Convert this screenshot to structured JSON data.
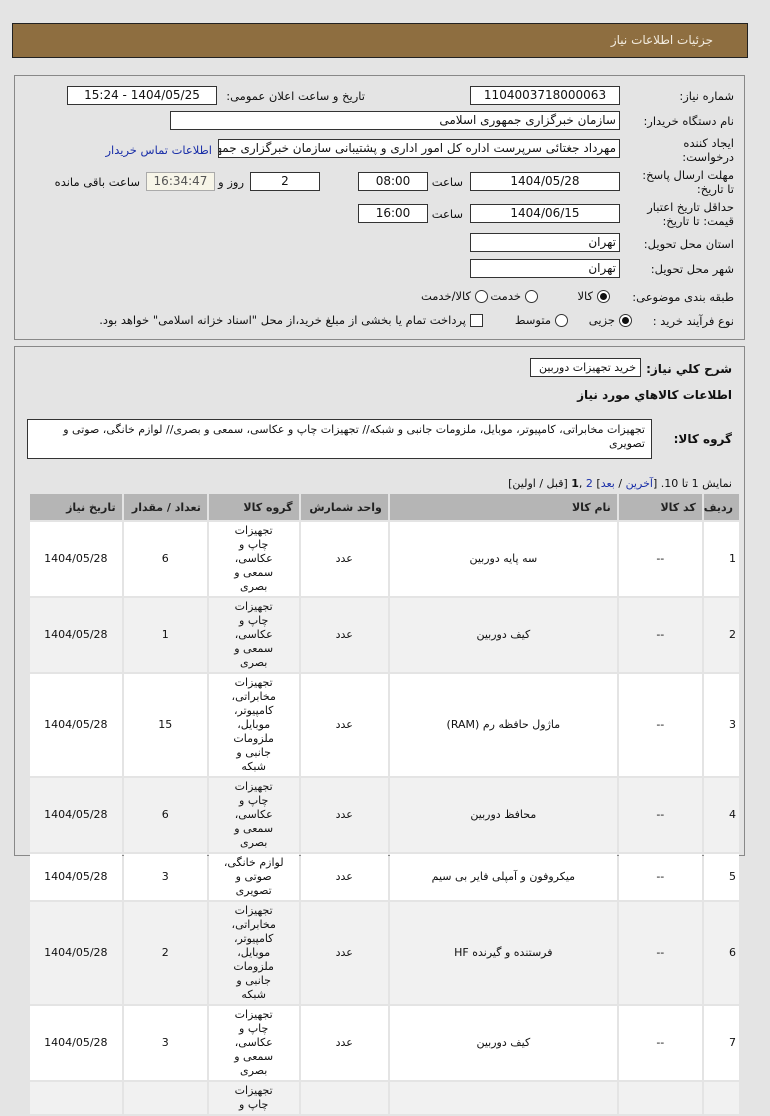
{
  "header": {
    "title": "جزئیات اطلاعات نیاز"
  },
  "form": {
    "need_number_label": "شماره نیاز:",
    "need_number": "1104003718000063",
    "announce_label": "تاریخ و ساعت اعلان عمومی:",
    "announce_value": "1404/05/25 - 15:24",
    "buyer_label": "نام دستگاه خریدار:",
    "buyer": "سازمان خبرگزاری جمهوری اسلامی",
    "creator_label": "ایجاد کننده درخواست:",
    "creator": "مهرداد جغتائی سرپرست اداره کل امور اداری و پشتیبانی سازمان خبرگزاری جمهوری اسلامی",
    "contact_link": "اطلاعات تماس خریدار",
    "deadline_label": "مهلت ارسال پاسخ: تا تاریخ:",
    "deadline_date": "1404/05/28",
    "time_label": "ساعت",
    "deadline_time": "08:00",
    "days": "2",
    "days_label": "روز و",
    "remaining": "16:34:47",
    "remaining_label": "ساعت باقی مانده",
    "validity_label": "حداقل تاریخ اعتبار قیمت: تا تاریخ:",
    "validity_date": "1404/06/15",
    "validity_time": "16:00",
    "province_label": "استان محل تحویل:",
    "province": "تهران",
    "city_label": "شهر محل تحویل:",
    "city": "تهران",
    "category_label": "طبقه بندی موضوعی:",
    "category_options": [
      "کالا",
      "خدمت",
      "کالا/خدمت"
    ],
    "category_selected": "کالا",
    "process_label": "نوع فرآیند خرید :",
    "process_options": [
      "جزیی",
      "متوسط"
    ],
    "process_selected": "جزیی",
    "payment_note": "پرداخت تمام یا بخشی از مبلغ خرید،از محل \"اسناد خزانه اسلامی\" خواهد بود."
  },
  "details": {
    "summary_label": "شرح كلي نياز:",
    "summary": "خرید تجهیزات دوربین",
    "goods_title": "اطلاعات كالاهاي مورد نياز",
    "group_label": "گروه کالا:",
    "group_value": "تجهیزات مخابراتی، کامپیوتر، موبایل، ملزومات جانبی و شبکه// تجهیزات چاپ و عکاسی، سمعی و بصری// لوازم خانگی، صوتی و تصویری",
    "pagination": {
      "prefix": "نمایش 1 تا 10. [",
      "last": "آخرین",
      "sep1": " / ",
      "next": "بعد",
      "mid": "] ",
      "page2": "2",
      "comma": " ,",
      "page1": "1",
      "suffix": " [قبل / اولین]"
    },
    "columns": [
      "ردیف",
      "کد کالا",
      "نام کالا",
      "واحد شمارش",
      "گروه کالا",
      "تعداد / مقدار",
      "تاریخ نیاز"
    ],
    "rows": [
      [
        "1",
        "--",
        "سه پایه دوربین",
        "عدد",
        "تجهیزات چاپ و عکاسی، سمعی و بصری",
        "6",
        "1404/05/28"
      ],
      [
        "2",
        "--",
        "کیف دوربین",
        "عدد",
        "تجهیزات چاپ و عکاسی، سمعی و بصری",
        "1",
        "1404/05/28"
      ],
      [
        "3",
        "--",
        "ماژول حافظه رم (RAM)",
        "عدد",
        "تجهیزات مخابراتی، کامپیوتر، موبایل، ملزومات جانبی و شبکه",
        "15",
        "1404/05/28"
      ],
      [
        "4",
        "--",
        "محافظ دوربین",
        "عدد",
        "تجهیزات چاپ و عکاسی، سمعی و بصری",
        "6",
        "1404/05/28"
      ],
      [
        "5",
        "--",
        "میکروفون و آمپلی فایر بی سیم",
        "عدد",
        "لوازم خانگی، صوتی و تصویری",
        "3",
        "1404/05/28"
      ],
      [
        "6",
        "--",
        "فرستنده و گیرنده HF",
        "عدد",
        "تجهیزات مخابراتی، کامپیوتر، موبایل، ملزومات جانبی و شبکه",
        "2",
        "1404/05/28"
      ],
      [
        "7",
        "--",
        "کیف دوربین",
        "عدد",
        "تجهیزات چاپ و عکاسی، سمعی و بصری",
        "3",
        "1404/05/28"
      ],
      [
        "",
        "",
        "",
        "",
        "تجهیزات چاپ و",
        "",
        ""
      ]
    ]
  }
}
